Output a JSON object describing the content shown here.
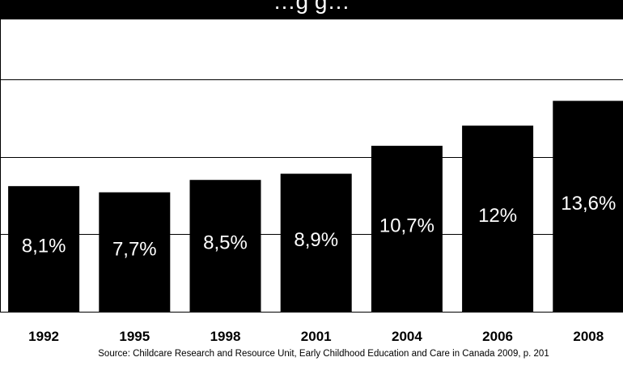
{
  "title": "…g    g…",
  "source": "Source: Childcare Research and Resource Unit, Early Childhood Education and Care in Canada 2009, p. 201",
  "chart_data": {
    "type": "bar",
    "categories": [
      "1992",
      "1995",
      "1998",
      "2001",
      "2004",
      "2006",
      "2008"
    ],
    "values": [
      8.1,
      7.7,
      8.5,
      8.9,
      10.7,
      12.0,
      13.6
    ],
    "value_labels": [
      "8,1%",
      "7,7%",
      "8,5%",
      "8,9%",
      "10,7%",
      "12%",
      "13,6%"
    ],
    "bar_color": "#000000",
    "label_color": "#ffffff",
    "grid": true,
    "ylim": [
      0,
      20
    ]
  }
}
